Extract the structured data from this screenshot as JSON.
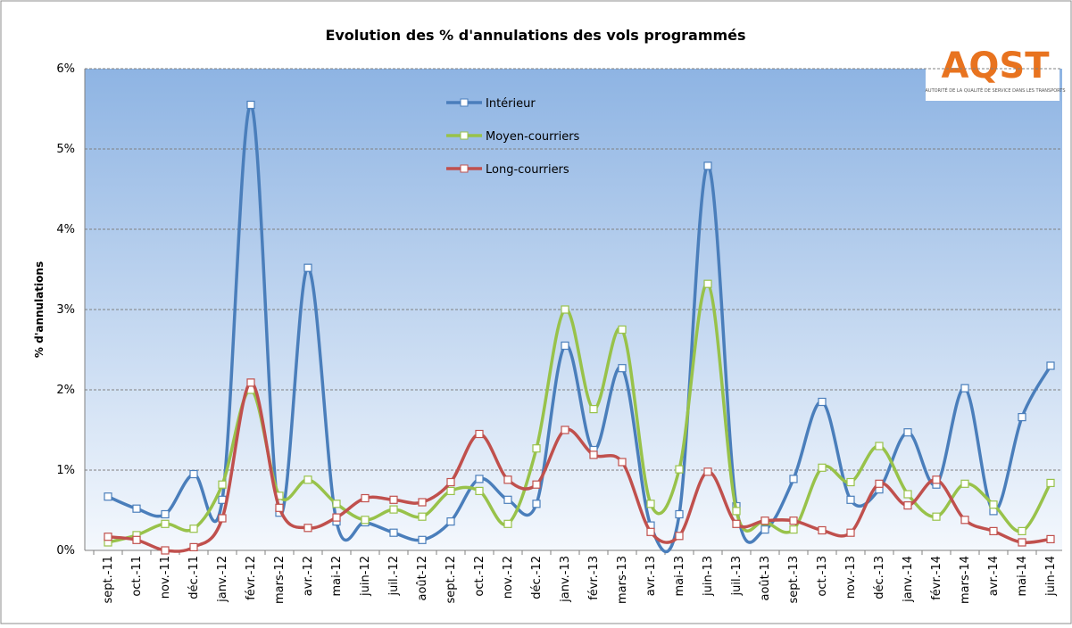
{
  "chart_data": {
    "type": "line",
    "title": "Evolution des % d'annulations des vols programmés",
    "y_label": "% d'annulations",
    "logo": {
      "text": "AQST",
      "subtitle": "AUTORITÉ DE LA QUALITÉ DE SERVICE DANS LES TRANSPORTS"
    },
    "categories": [
      "sept.-11",
      "oct.-11",
      "nov.-11",
      "déc.-11",
      "janv.-12",
      "févr.-12",
      "mars-12",
      "avr.-12",
      "mai-12",
      "juin-12",
      "juil.-12",
      "août-12",
      "sept.-12",
      "oct.-12",
      "nov.-12",
      "déc.-12",
      "janv.-13",
      "févr.-13",
      "mars-13",
      "avr.-13",
      "mai-13",
      "juin-13",
      "juil.-13",
      "août-13",
      "sept.-13",
      "oct.-13",
      "nov.-13",
      "déc.-13",
      "janv.-14",
      "févr.-14",
      "mars-14",
      "avr.-14",
      "mai-14",
      "juin-14"
    ],
    "series": [
      {
        "name": "Intérieur",
        "color": "#4a7ebb",
        "values": [
          0.67,
          0.52,
          0.45,
          0.95,
          0.63,
          5.55,
          0.47,
          3.52,
          0.36,
          0.35,
          0.22,
          0.13,
          0.36,
          0.89,
          0.63,
          0.58,
          2.55,
          1.25,
          2.27,
          0.31,
          0.45,
          4.79,
          0.55,
          0.26,
          0.89,
          1.85,
          0.63,
          0.76,
          1.47,
          0.82,
          2.02,
          0.49,
          1.66,
          2.3
        ]
      },
      {
        "name": "Moyen-courriers",
        "color": "#98c24a",
        "values": [
          0.1,
          0.19,
          0.33,
          0.27,
          0.82,
          2.0,
          0.68,
          0.88,
          0.58,
          0.38,
          0.51,
          0.42,
          0.74,
          0.74,
          0.33,
          1.27,
          3.0,
          1.76,
          2.75,
          0.58,
          1.01,
          3.32,
          0.49,
          0.36,
          0.26,
          1.03,
          0.85,
          1.3,
          0.7,
          0.42,
          0.83,
          0.57,
          0.24,
          0.84
        ]
      },
      {
        "name": "Long-courriers",
        "color": "#c0504d",
        "values": [
          0.17,
          0.13,
          0.0,
          0.04,
          0.4,
          2.09,
          0.53,
          0.28,
          0.41,
          0.65,
          0.63,
          0.6,
          0.85,
          1.45,
          0.88,
          0.82,
          1.5,
          1.19,
          1.1,
          0.23,
          0.18,
          0.98,
          0.33,
          0.37,
          0.37,
          0.25,
          0.22,
          0.83,
          0.56,
          0.88,
          0.38,
          0.24,
          0.1,
          0.14
        ]
      }
    ],
    "ylim": [
      0,
      6
    ],
    "yticks": [
      {
        "value": 0,
        "label": "0%"
      },
      {
        "value": 1,
        "label": "1%"
      },
      {
        "value": 2,
        "label": "2%"
      },
      {
        "value": 3,
        "label": "3%"
      },
      {
        "value": 4,
        "label": "4%"
      },
      {
        "value": 5,
        "label": "5%"
      },
      {
        "value": 6,
        "label": "6%"
      }
    ],
    "grid": true,
    "smooth": true
  }
}
